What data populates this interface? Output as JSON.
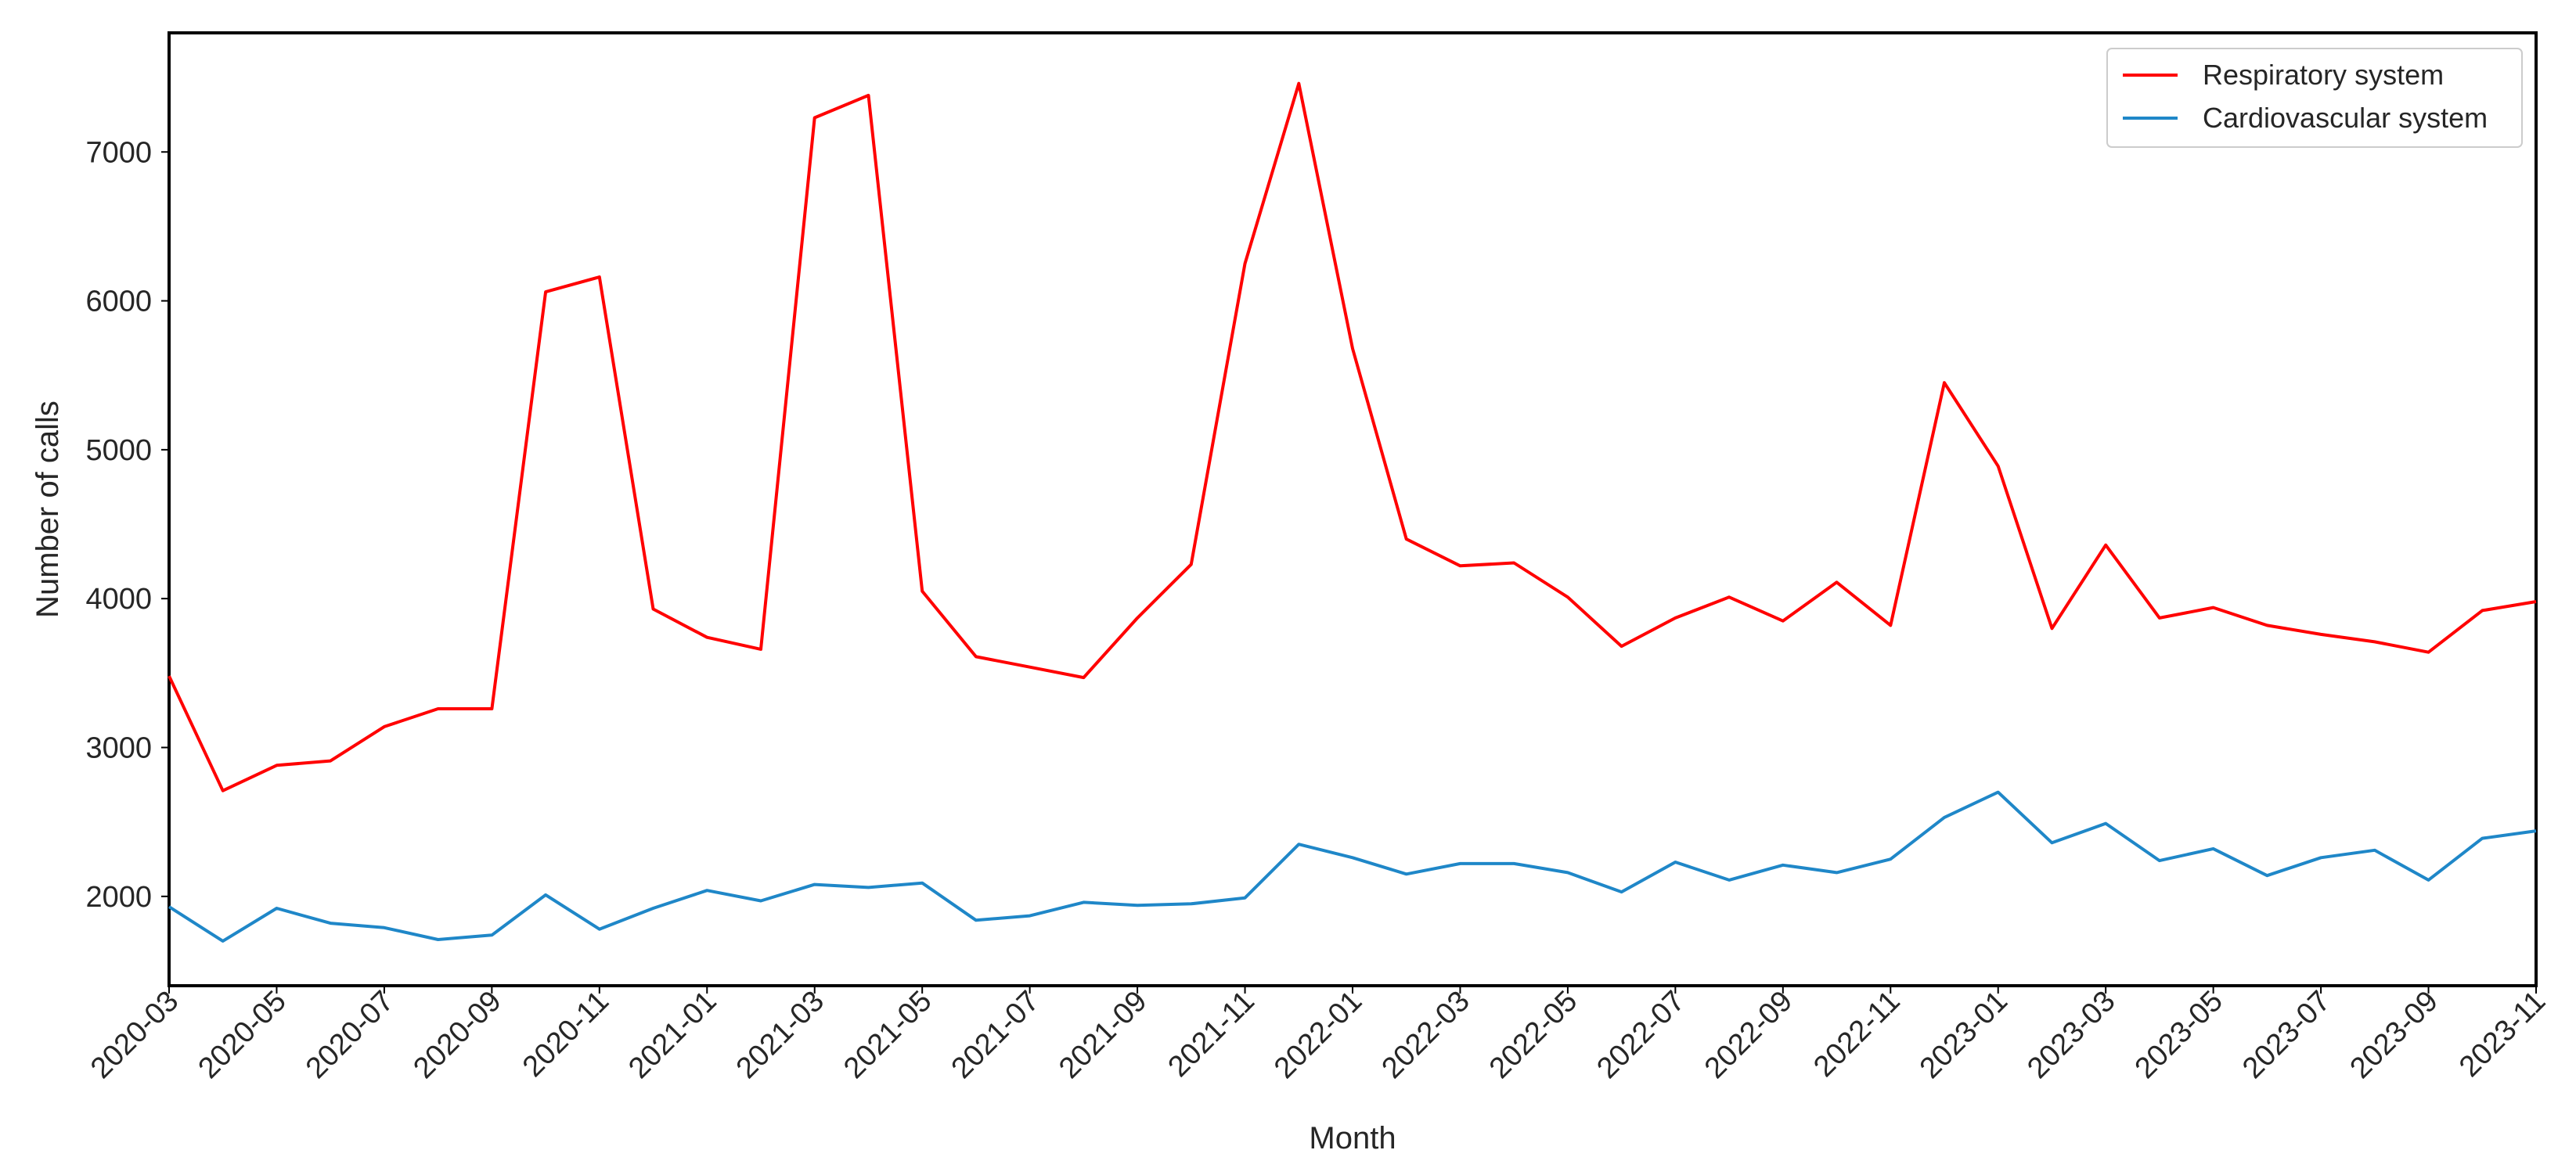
{
  "chart_data": {
    "type": "line",
    "xlabel": "Month",
    "ylabel": "Number of calls",
    "ylim": [
      1400,
      7800
    ],
    "yticks": [
      2000,
      3000,
      4000,
      5000,
      6000,
      7000
    ],
    "xticks": [
      "2020-03",
      "2020-05",
      "2020-07",
      "2020-09",
      "2020-11",
      "2021-01",
      "2021-03",
      "2021-05",
      "2021-07",
      "2021-09",
      "2021-11",
      "2022-01",
      "2022-03",
      "2022-05",
      "2022-07",
      "2022-09",
      "2022-11",
      "2023-01",
      "2023-03",
      "2023-05",
      "2023-07",
      "2023-09",
      "2023-11"
    ],
    "grid": false,
    "legend_position": "top-right",
    "x": [
      "2020-03",
      "2020-04",
      "2020-05",
      "2020-06",
      "2020-07",
      "2020-08",
      "2020-09",
      "2020-10",
      "2020-11",
      "2020-12",
      "2021-01",
      "2021-02",
      "2021-03",
      "2021-04",
      "2021-05",
      "2021-06",
      "2021-07",
      "2021-08",
      "2021-09",
      "2021-10",
      "2021-11",
      "2021-12",
      "2022-01",
      "2022-02",
      "2022-03",
      "2022-04",
      "2022-05",
      "2022-06",
      "2022-07",
      "2022-08",
      "2022-09",
      "2022-10",
      "2022-11",
      "2022-12",
      "2023-01",
      "2023-02",
      "2023-03",
      "2023-04",
      "2023-05",
      "2023-06",
      "2023-07",
      "2023-08",
      "2023-09",
      "2023-10",
      "2023-11"
    ],
    "series": [
      {
        "name": "Respiratory system",
        "color": "#ff0000",
        "values": [
          3480,
          2710,
          2880,
          2910,
          3140,
          3260,
          3260,
          6060,
          6160,
          3930,
          3740,
          3660,
          7230,
          7380,
          4050,
          3610,
          3540,
          3470,
          3870,
          4230,
          6250,
          7460,
          5680,
          4400,
          4220,
          4240,
          4010,
          3680,
          3870,
          4010,
          3850,
          4110,
          3820,
          5450,
          4890,
          3800,
          4360,
          3870,
          3940,
          3820,
          3760,
          3710,
          3640,
          3920,
          3980
        ]
      },
      {
        "name": "Cardiovascular system",
        "color": "#1f87c8",
        "values": [
          1930,
          1700,
          1920,
          1820,
          1790,
          1710,
          1740,
          2010,
          1780,
          1920,
          2040,
          1970,
          2080,
          2060,
          2090,
          1840,
          1870,
          1960,
          1940,
          1950,
          1990,
          2350,
          2260,
          2150,
          2220,
          2220,
          2160,
          2030,
          2230,
          2110,
          2210,
          2160,
          2250,
          2530,
          2700,
          2360,
          2490,
          2240,
          2320,
          2140,
          2260,
          2310,
          2110,
          2390,
          2440
        ]
      }
    ]
  }
}
